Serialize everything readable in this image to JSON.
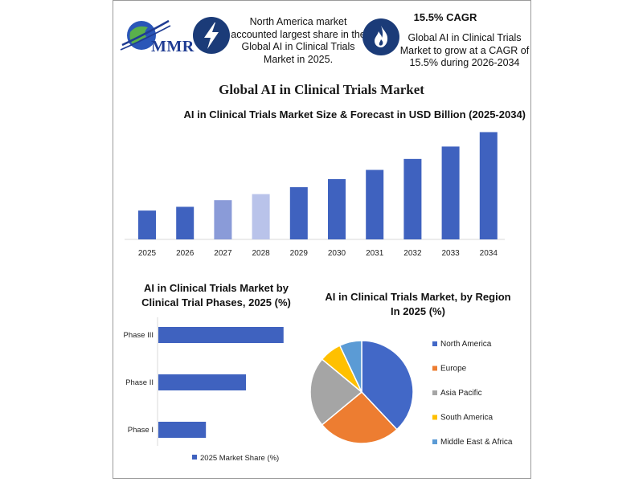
{
  "header": {
    "logo_text": "MMR",
    "info1_text": "North America market accounted largest share in the Global AI in Clinical Trials Market in 2025.",
    "info2_title": "15.5% CAGR",
    "info2_text": "Global AI in Clinical Trials Market to grow at a CAGR of 15.5% during 2026-2034",
    "icons": [
      "lightning-icon",
      "flame-icon"
    ]
  },
  "main_title": "Global AI in Clinical Trials Market",
  "chart_data": [
    {
      "type": "bar",
      "title": "AI in Clinical Trials Market Size & Forecast in USD Billion (2025-2034)",
      "categories": [
        "2025",
        "2026",
        "2027",
        "2028",
        "2029",
        "2030",
        "2031",
        "2032",
        "2033",
        "2034"
      ],
      "values": [
        1.0,
        1.13,
        1.36,
        1.57,
        1.81,
        2.09,
        2.41,
        2.79,
        3.22,
        3.72
      ],
      "colors": [
        "#3f62bf",
        "#3f62bf",
        "#8a9bd8",
        "#b9c3ea",
        "#3f62bf",
        "#3f62bf",
        "#3f62bf",
        "#3f62bf",
        "#3f62bf",
        "#3f62bf"
      ],
      "ylim": [
        0,
        3.9
      ],
      "grid": false
    },
    {
      "type": "bar",
      "orientation": "horizontal",
      "title": "AI in Clinical Trials Market by Clinical Trial Phases, 2025 (%)",
      "categories": [
        "Phase III",
        "Phase II",
        "Phase I"
      ],
      "series": [
        {
          "name": "2025 Market Share (%)",
          "values": [
            50,
            35,
            19
          ]
        }
      ],
      "color": "#3f62bf",
      "xlim": [
        0,
        52
      ],
      "legend": "bottom"
    },
    {
      "type": "pie",
      "title": "AI in Clinical Trials Market, by Region In 2025 (%)",
      "labels": [
        "North America",
        "Europe",
        "Asia Pacific",
        "South America",
        "Middle East & Africa"
      ],
      "values": [
        38,
        26,
        22,
        7,
        7
      ],
      "colors": [
        "#4268c7",
        "#ed7d31",
        "#a5a5a5",
        "#ffc000",
        "#5b9bd5"
      ],
      "legend": "right"
    }
  ]
}
